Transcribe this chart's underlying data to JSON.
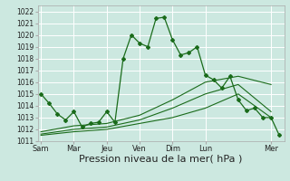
{
  "bg_color": "#cce8e0",
  "grid_color": "#ffffff",
  "line_color": "#1a6b1a",
  "xlabel": "Pression niveau de la mer( hPa )",
  "xlabel_fontsize": 8,
  "ylim": [
    1011,
    1022.5
  ],
  "yticks": [
    1011,
    1012,
    1013,
    1014,
    1015,
    1016,
    1017,
    1018,
    1019,
    1020,
    1021,
    1022
  ],
  "day_labels": [
    "Sam",
    "Mar",
    "Jeu",
    "Ven",
    "Dim",
    "Lun",
    "Mer"
  ],
  "day_positions": [
    0,
    2,
    4,
    6,
    8,
    10,
    14
  ],
  "xlim": [
    -0.2,
    14.8
  ],
  "series1_x": [
    0,
    0.5,
    1,
    1.5,
    2,
    2.5,
    3,
    3.5,
    4,
    4.5,
    5,
    5.5,
    6,
    6.5,
    7,
    7.5,
    8,
    8.5,
    9,
    9.5,
    10,
    10.5,
    11,
    11.5,
    12,
    12.5,
    13,
    13.5,
    14,
    14.5
  ],
  "series1_y": [
    1015.0,
    1014.2,
    1013.3,
    1012.8,
    1013.5,
    1012.2,
    1012.5,
    1012.6,
    1013.5,
    1012.6,
    1018.0,
    1020.0,
    1019.3,
    1019.0,
    1021.4,
    1021.5,
    1019.6,
    1018.3,
    1018.5,
    1019.0,
    1016.6,
    1016.2,
    1015.5,
    1016.5,
    1014.5,
    1013.6,
    1013.8,
    1013.0,
    1013.0,
    1011.5
  ],
  "series2_x": [
    0,
    2,
    4,
    6,
    8,
    10,
    12,
    14
  ],
  "series2_y": [
    1011.5,
    1011.8,
    1012.0,
    1012.5,
    1013.0,
    1013.8,
    1015.0,
    1013.0
  ],
  "series3_x": [
    0,
    2,
    4,
    6,
    8,
    10,
    12,
    14
  ],
  "series3_y": [
    1011.6,
    1012.0,
    1012.2,
    1012.8,
    1013.8,
    1015.0,
    1015.8,
    1013.5
  ],
  "series4_x": [
    0,
    2,
    4,
    6,
    8,
    10,
    12,
    14
  ],
  "series4_y": [
    1011.8,
    1012.3,
    1012.5,
    1013.2,
    1014.5,
    1016.0,
    1016.5,
    1015.8
  ]
}
